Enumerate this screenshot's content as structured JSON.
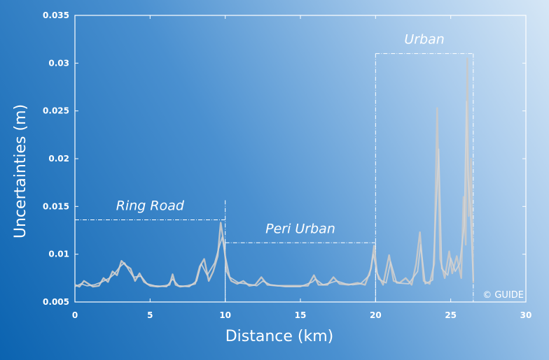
{
  "chart_data": {
    "type": "line",
    "xlabel": "Distance (km)",
    "ylabel": "Uncertainties (m)",
    "xlim": [
      0,
      30
    ],
    "ylim": [
      0.005,
      0.035
    ],
    "x_ticks": [
      "0",
      "5",
      "10",
      "15",
      "20",
      "25",
      "30"
    ],
    "y_ticks": [
      "0.005",
      "0.01",
      "0.015",
      "0.02",
      "0.025",
      "0.03",
      "0.035"
    ],
    "grid": false,
    "regions": [
      {
        "label": "Ring Road",
        "x_start": 0,
        "x_end": 10,
        "level": 0.0136
      },
      {
        "label": "Peri Urban",
        "x_start": 10,
        "x_end": 20,
        "level": 0.0112
      },
      {
        "label": "Urban",
        "x_start": 20,
        "x_end": 26.5,
        "level": 0.031
      }
    ],
    "series": [
      {
        "color": "#c8c8c8",
        "points": [
          [
            0,
            0.0068
          ],
          [
            0.3,
            0.0066
          ],
          [
            0.6,
            0.0072
          ],
          [
            0.9,
            0.0069
          ],
          [
            1.2,
            0.0066
          ],
          [
            1.6,
            0.0067
          ],
          [
            1.9,
            0.0075
          ],
          [
            2.2,
            0.0071
          ],
          [
            2.5,
            0.0082
          ],
          [
            2.8,
            0.0078
          ],
          [
            3.1,
            0.0093
          ],
          [
            3.4,
            0.0088
          ],
          [
            3.7,
            0.0085
          ],
          [
            4.0,
            0.0072
          ],
          [
            4.3,
            0.008
          ],
          [
            4.6,
            0.0071
          ],
          [
            5.0,
            0.0067
          ],
          [
            5.5,
            0.0066
          ],
          [
            6.0,
            0.0067
          ],
          [
            6.3,
            0.0068
          ],
          [
            6.5,
            0.0079
          ],
          [
            6.7,
            0.0068
          ],
          [
            7.0,
            0.0066
          ],
          [
            7.5,
            0.0067
          ],
          [
            8.0,
            0.0069
          ],
          [
            8.3,
            0.0087
          ],
          [
            8.6,
            0.0095
          ],
          [
            8.9,
            0.0072
          ],
          [
            9.2,
            0.0082
          ],
          [
            9.5,
            0.0098
          ],
          [
            9.7,
            0.0133
          ],
          [
            9.9,
            0.0112
          ],
          [
            10.1,
            0.0082
          ],
          [
            10.4,
            0.0072
          ],
          [
            10.8,
            0.0069
          ],
          [
            11.2,
            0.0072
          ],
          [
            11.6,
            0.0067
          ],
          [
            12.0,
            0.0068
          ],
          [
            12.4,
            0.0076
          ],
          [
            12.8,
            0.0068
          ],
          [
            13.5,
            0.0067
          ],
          [
            14.5,
            0.0067
          ],
          [
            15.5,
            0.0067
          ],
          [
            15.9,
            0.0078
          ],
          [
            16.2,
            0.0068
          ],
          [
            16.8,
            0.0068
          ],
          [
            17.2,
            0.0076
          ],
          [
            17.6,
            0.0069
          ],
          [
            18.2,
            0.0068
          ],
          [
            18.8,
            0.007
          ],
          [
            19.3,
            0.0068
          ],
          [
            19.7,
            0.0085
          ],
          [
            19.9,
            0.0109
          ],
          [
            20.1,
            0.008
          ],
          [
            20.5,
            0.0068
          ],
          [
            20.9,
            0.0099
          ],
          [
            21.2,
            0.0072
          ],
          [
            21.6,
            0.007
          ],
          [
            22.0,
            0.0075
          ],
          [
            22.4,
            0.0068
          ],
          [
            22.7,
            0.009
          ],
          [
            22.95,
            0.0123
          ],
          [
            23.2,
            0.0072
          ],
          [
            23.6,
            0.0069
          ],
          [
            23.9,
            0.009
          ],
          [
            24.1,
            0.0253
          ],
          [
            24.3,
            0.0095
          ],
          [
            24.6,
            0.0075
          ],
          [
            24.9,
            0.0103
          ],
          [
            25.1,
            0.008
          ],
          [
            25.4,
            0.0098
          ],
          [
            25.7,
            0.0075
          ],
          [
            25.85,
            0.016
          ],
          [
            26.0,
            0.011
          ],
          [
            26.1,
            0.0305
          ],
          [
            26.2,
            0.014
          ],
          [
            26.35,
            0.02
          ],
          [
            26.5,
            0.007
          ]
        ]
      },
      {
        "color": "#d6d6d6",
        "points": [
          [
            0,
            0.0066
          ],
          [
            0.4,
            0.0069
          ],
          [
            0.8,
            0.0067
          ],
          [
            1.3,
            0.0068
          ],
          [
            1.8,
            0.0071
          ],
          [
            2.3,
            0.0075
          ],
          [
            2.6,
            0.0079
          ],
          [
            3.0,
            0.0087
          ],
          [
            3.3,
            0.0091
          ],
          [
            3.6,
            0.0083
          ],
          [
            3.9,
            0.0076
          ],
          [
            4.4,
            0.0077
          ],
          [
            4.8,
            0.0069
          ],
          [
            5.3,
            0.0067
          ],
          [
            6.1,
            0.0066
          ],
          [
            6.5,
            0.0074
          ],
          [
            6.9,
            0.0067
          ],
          [
            7.6,
            0.0066
          ],
          [
            8.1,
            0.0072
          ],
          [
            8.4,
            0.009
          ],
          [
            8.8,
            0.0078
          ],
          [
            9.3,
            0.0091
          ],
          [
            9.6,
            0.0108
          ],
          [
            9.8,
            0.0118
          ],
          [
            10.0,
            0.0098
          ],
          [
            10.3,
            0.0076
          ],
          [
            10.9,
            0.007
          ],
          [
            11.4,
            0.0069
          ],
          [
            12.1,
            0.0067
          ],
          [
            12.5,
            0.0072
          ],
          [
            13.0,
            0.0068
          ],
          [
            14.0,
            0.0066
          ],
          [
            15.0,
            0.0066
          ],
          [
            15.8,
            0.0071
          ],
          [
            16.0,
            0.0074
          ],
          [
            16.5,
            0.0068
          ],
          [
            17.0,
            0.007
          ],
          [
            17.4,
            0.0072
          ],
          [
            18.0,
            0.0069
          ],
          [
            18.5,
            0.0068
          ],
          [
            19.0,
            0.0069
          ],
          [
            19.6,
            0.0078
          ],
          [
            19.85,
            0.01
          ],
          [
            20.2,
            0.0074
          ],
          [
            20.7,
            0.007
          ],
          [
            21.0,
            0.0092
          ],
          [
            21.4,
            0.007
          ],
          [
            22.2,
            0.0069
          ],
          [
            22.8,
            0.0082
          ],
          [
            23.0,
            0.011
          ],
          [
            23.3,
            0.0069
          ],
          [
            23.8,
            0.0073
          ],
          [
            24.0,
            0.014
          ],
          [
            24.2,
            0.021
          ],
          [
            24.4,
            0.0085
          ],
          [
            24.8,
            0.0078
          ],
          [
            25.0,
            0.0096
          ],
          [
            25.3,
            0.0082
          ],
          [
            25.6,
            0.009
          ],
          [
            25.9,
            0.013
          ],
          [
            26.05,
            0.026
          ],
          [
            26.15,
            0.018
          ],
          [
            26.3,
            0.015
          ],
          [
            26.45,
            0.009
          ],
          [
            26.5,
            0.0072
          ]
        ]
      }
    ]
  },
  "watermark": "© GUIDE"
}
